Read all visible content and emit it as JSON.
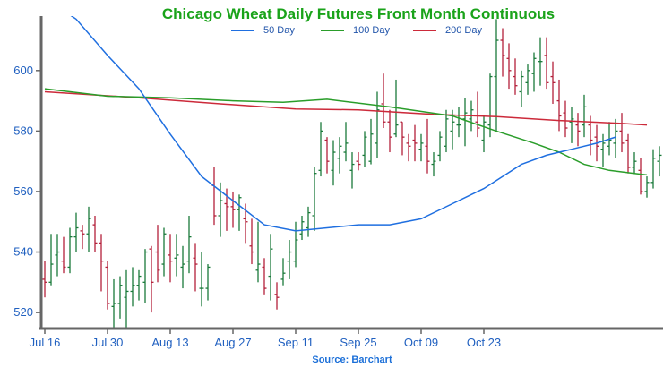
{
  "chart_data": {
    "type": "ohlc",
    "title": "Chicago Wheat Daily Futures Front Month Continuous",
    "source": "Source: Barchart",
    "x_tick_labels": [
      "Jul 16",
      "Jul 30",
      "Aug 13",
      "Aug 27",
      "Sep 11",
      "Sep 25",
      "Oct 09",
      "Oct 23"
    ],
    "x_tick_indices": [
      0,
      10,
      20,
      30,
      40,
      50,
      60,
      70
    ],
    "y_ticks": [
      520,
      540,
      560,
      580,
      600
    ],
    "ylim": [
      515,
      618
    ],
    "grid": false,
    "legend": [
      "50 Day",
      "100 Day",
      "200 Day"
    ],
    "legend_position": "top-center",
    "colors": {
      "up": "#1a7a3a",
      "down": "#b3203a",
      "ma50": "#1f6fe0",
      "ma100": "#2a9d2a",
      "ma200": "#cc2a3a",
      "axis": "#2060c0",
      "title": "#1aa31a"
    },
    "bars": [
      {
        "date": "Jul 16",
        "o": 531,
        "h": 537,
        "l": 525,
        "c": 530
      },
      {
        "date": "Jul 17",
        "o": 530,
        "h": 546,
        "l": 529,
        "c": 536
      },
      {
        "date": "Jul 18",
        "o": 539,
        "h": 546,
        "l": 532,
        "c": 540
      },
      {
        "date": "Jul 19",
        "o": 537,
        "h": 545,
        "l": 533,
        "c": 535
      },
      {
        "date": "Jul 20",
        "o": 535,
        "h": 548,
        "l": 533,
        "c": 545
      },
      {
        "date": "Jul 23",
        "o": 545,
        "h": 553,
        "l": 540,
        "c": 548
      },
      {
        "date": "Jul 24",
        "o": 547,
        "h": 549,
        "l": 541,
        "c": 546
      },
      {
        "date": "Jul 25",
        "o": 546,
        "h": 555,
        "l": 540,
        "c": 551
      },
      {
        "date": "Jul 26",
        "o": 549,
        "h": 552,
        "l": 540,
        "c": 543
      },
      {
        "date": "Jul 27",
        "o": 543,
        "h": 546,
        "l": 527,
        "c": 537
      },
      {
        "date": "Jul 30",
        "o": 535,
        "h": 537,
        "l": 521,
        "c": 523
      },
      {
        "date": "Jul 31",
        "o": 522,
        "h": 531,
        "l": 514,
        "c": 523
      },
      {
        "date": "Aug 01",
        "o": 523,
        "h": 532,
        "l": 518,
        "c": 529
      },
      {
        "date": "Aug 02",
        "o": 525,
        "h": 534,
        "l": 515,
        "c": 527
      },
      {
        "date": "Aug 03",
        "o": 527,
        "h": 535,
        "l": 522,
        "c": 529
      },
      {
        "date": "Aug 06",
        "o": 529,
        "h": 534,
        "l": 524,
        "c": 532
      },
      {
        "date": "Aug 07",
        "o": 530,
        "h": 541,
        "l": 523,
        "c": 540
      },
      {
        "date": "Aug 08",
        "o": 541,
        "h": 542,
        "l": 520,
        "c": 530
      },
      {
        "date": "Aug 09",
        "o": 540,
        "h": 549,
        "l": 530,
        "c": 534
      },
      {
        "date": "Aug 10",
        "o": 536,
        "h": 548,
        "l": 532,
        "c": 546
      },
      {
        "date": "Aug 13",
        "o": 539,
        "h": 546,
        "l": 530,
        "c": 537
      },
      {
        "date": "Aug 14",
        "o": 538,
        "h": 546,
        "l": 532,
        "c": 539
      },
      {
        "date": "Aug 15",
        "o": 535,
        "h": 542,
        "l": 528,
        "c": 536
      },
      {
        "date": "Aug 16",
        "o": 537,
        "h": 552,
        "l": 533,
        "c": 545
      },
      {
        "date": "Aug 17",
        "o": 538,
        "h": 543,
        "l": 527,
        "c": 536
      },
      {
        "date": "Aug 20",
        "o": 528,
        "h": 540,
        "l": 522,
        "c": 528
      },
      {
        "date": "Aug 21",
        "o": 528,
        "h": 536,
        "l": 524,
        "c": 535
      },
      {
        "date": "Aug 22",
        "o": 562,
        "h": 568,
        "l": 549,
        "c": 552
      },
      {
        "date": "Aug 23",
        "o": 552,
        "h": 563,
        "l": 545,
        "c": 557
      },
      {
        "date": "Aug 24",
        "o": 556,
        "h": 561,
        "l": 547,
        "c": 555
      },
      {
        "date": "Aug 27",
        "o": 555,
        "h": 560,
        "l": 548,
        "c": 554
      },
      {
        "date": "Aug 28",
        "o": 554,
        "h": 559,
        "l": 547,
        "c": 558
      },
      {
        "date": "Aug 29",
        "o": 551,
        "h": 556,
        "l": 543,
        "c": 550
      },
      {
        "date": "Aug 30",
        "o": 542,
        "h": 551,
        "l": 536,
        "c": 540
      },
      {
        "date": "Aug 31",
        "o": 534,
        "h": 550,
        "l": 530,
        "c": 536
      },
      {
        "date": "Sep 04",
        "o": 535,
        "h": 538,
        "l": 526,
        "c": 528
      },
      {
        "date": "Sep 05",
        "o": 532,
        "h": 546,
        "l": 524,
        "c": 541
      },
      {
        "date": "Sep 06",
        "o": 526,
        "h": 530,
        "l": 521,
        "c": 525
      },
      {
        "date": "Sep 07",
        "o": 531,
        "h": 538,
        "l": 529,
        "c": 533
      },
      {
        "date": "Sep 10",
        "o": 537,
        "h": 544,
        "l": 531,
        "c": 540
      },
      {
        "date": "Sep 11",
        "o": 537,
        "h": 550,
        "l": 535,
        "c": 544
      },
      {
        "date": "Sep 12",
        "o": 546,
        "h": 552,
        "l": 544,
        "c": 550
      },
      {
        "date": "Sep 13",
        "o": 548,
        "h": 555,
        "l": 545,
        "c": 553
      },
      {
        "date": "Sep 14",
        "o": 552,
        "h": 568,
        "l": 547,
        "c": 566
      },
      {
        "date": "Sep 17",
        "o": 567,
        "h": 583,
        "l": 565,
        "c": 580
      },
      {
        "date": "Sep 18",
        "o": 577,
        "h": 578,
        "l": 566,
        "c": 570
      },
      {
        "date": "Sep 19",
        "o": 567,
        "h": 577,
        "l": 562,
        "c": 573
      },
      {
        "date": "Sep 20",
        "o": 571,
        "h": 578,
        "l": 566,
        "c": 575
      },
      {
        "date": "Sep 21",
        "o": 573,
        "h": 583,
        "l": 570,
        "c": 576
      },
      {
        "date": "Sep 24",
        "o": 567,
        "h": 573,
        "l": 561,
        "c": 569
      },
      {
        "date": "Sep 25",
        "o": 570,
        "h": 573,
        "l": 567,
        "c": 569
      },
      {
        "date": "Sep 26",
        "o": 572,
        "h": 580,
        "l": 568,
        "c": 578
      },
      {
        "date": "Sep 27",
        "o": 570,
        "h": 584,
        "l": 569,
        "c": 579
      },
      {
        "date": "Sep 28",
        "o": 576,
        "h": 593,
        "l": 571,
        "c": 587
      },
      {
        "date": "Sep 29",
        "o": 589,
        "h": 599,
        "l": 581,
        "c": 583
      },
      {
        "date": "Oct 01",
        "o": 583,
        "h": 587,
        "l": 573,
        "c": 578
      },
      {
        "date": "Oct 02",
        "o": 579,
        "h": 597,
        "l": 578,
        "c": 582
      },
      {
        "date": "Oct 03",
        "o": 583,
        "h": 583,
        "l": 572,
        "c": 578
      },
      {
        "date": "Oct 04",
        "o": 576,
        "h": 579,
        "l": 570,
        "c": 575
      },
      {
        "date": "Oct 05",
        "o": 577,
        "h": 582,
        "l": 570,
        "c": 576
      },
      {
        "date": "Oct 08",
        "o": 574,
        "h": 579,
        "l": 570,
        "c": 576
      },
      {
        "date": "Oct 09",
        "o": 575,
        "h": 584,
        "l": 566,
        "c": 570
      },
      {
        "date": "Oct 10",
        "o": 569,
        "h": 573,
        "l": 565,
        "c": 570
      },
      {
        "date": "Oct 11",
        "o": 572,
        "h": 580,
        "l": 570,
        "c": 578
      },
      {
        "date": "Oct 12",
        "o": 575,
        "h": 587,
        "l": 573,
        "c": 584
      },
      {
        "date": "Oct 15",
        "o": 580,
        "h": 587,
        "l": 574,
        "c": 583
      },
      {
        "date": "Oct 16",
        "o": 582,
        "h": 588,
        "l": 578,
        "c": 582
      },
      {
        "date": "Oct 17",
        "o": 584,
        "h": 591,
        "l": 575,
        "c": 586
      },
      {
        "date": "Oct 18",
        "o": 584,
        "h": 590,
        "l": 580,
        "c": 587
      },
      {
        "date": "Oct 19",
        "o": 583,
        "h": 593,
        "l": 578,
        "c": 581
      },
      {
        "date": "Oct 22",
        "o": 577,
        "h": 585,
        "l": 573,
        "c": 583
      },
      {
        "date": "Oct 23",
        "o": 582,
        "h": 599,
        "l": 578,
        "c": 598
      },
      {
        "date": "Oct 24",
        "o": 598,
        "h": 617,
        "l": 580,
        "c": 610
      },
      {
        "date": "Oct 25",
        "o": 610,
        "h": 614,
        "l": 598,
        "c": 605
      },
      {
        "date": "Oct 26",
        "o": 604,
        "h": 609,
        "l": 594,
        "c": 600
      },
      {
        "date": "Oct 29",
        "o": 598,
        "h": 604,
        "l": 592,
        "c": 595
      },
      {
        "date": "Oct 30",
        "o": 593,
        "h": 600,
        "l": 588,
        "c": 598
      },
      {
        "date": "Oct 31",
        "o": 596,
        "h": 602,
        "l": 592,
        "c": 600
      },
      {
        "date": "Nov 01",
        "o": 599,
        "h": 606,
        "l": 593,
        "c": 604
      },
      {
        "date": "Nov 02",
        "o": 603,
        "h": 611,
        "l": 595,
        "c": 603
      },
      {
        "date": "Nov 05",
        "o": 605,
        "h": 611,
        "l": 594,
        "c": 596
      },
      {
        "date": "Nov 06",
        "o": 598,
        "h": 603,
        "l": 589,
        "c": 596
      },
      {
        "date": "Nov 07",
        "o": 590,
        "h": 597,
        "l": 580,
        "c": 585
      },
      {
        "date": "Nov 08",
        "o": 586,
        "h": 590,
        "l": 578,
        "c": 581
      },
      {
        "date": "Nov 09",
        "o": 583,
        "h": 588,
        "l": 576,
        "c": 584
      },
      {
        "date": "Nov 12",
        "o": 582,
        "h": 586,
        "l": 575,
        "c": 580
      },
      {
        "date": "Nov 13",
        "o": 582,
        "h": 592,
        "l": 578,
        "c": 588
      },
      {
        "date": "Nov 14",
        "o": 582,
        "h": 585,
        "l": 572,
        "c": 577
      },
      {
        "date": "Nov 15",
        "o": 578,
        "h": 582,
        "l": 570,
        "c": 575
      },
      {
        "date": "Nov 16",
        "o": 574,
        "h": 579,
        "l": 568,
        "c": 576
      },
      {
        "date": "Nov 19",
        "o": 575,
        "h": 583,
        "l": 572,
        "c": 577
      },
      {
        "date": "Nov 20",
        "o": 576,
        "h": 584,
        "l": 571,
        "c": 580
      },
      {
        "date": "Nov 21",
        "o": 580,
        "h": 586,
        "l": 573,
        "c": 576
      },
      {
        "date": "Nov 26",
        "o": 577,
        "h": 579,
        "l": 566,
        "c": 568
      },
      {
        "date": "Nov 27",
        "o": 568,
        "h": 573,
        "l": 566,
        "c": 570
      },
      {
        "date": "Nov 28",
        "o": 567,
        "h": 571,
        "l": 559,
        "c": 560
      },
      {
        "date": "Nov 29",
        "o": 560,
        "h": 565,
        "l": 558,
        "c": 563
      },
      {
        "date": "Nov 30",
        "o": 563,
        "h": 574,
        "l": 561,
        "c": 571
      },
      {
        "date": "Dec 03",
        "o": 570,
        "h": 575,
        "l": 565,
        "c": 572
      },
      {
        "date": "Dec 04",
        "o": 571,
        "h": 577,
        "l": 564,
        "c": 567
      },
      {
        "date": "Dec 05",
        "o": 567,
        "h": 573,
        "l": 564,
        "c": 569
      },
      {
        "date": "Dec 06",
        "o": 569,
        "h": 576,
        "l": 566,
        "c": 573
      },
      {
        "date": "Dec 07",
        "o": 571,
        "h": 575,
        "l": 565,
        "c": 571
      },
      {
        "date": "Dec 10",
        "o": 569,
        "h": 575,
        "l": 565,
        "c": 573
      }
    ],
    "ma50": [
      [
        0,
        624
      ],
      [
        5,
        617
      ],
      [
        10,
        605
      ],
      [
        15,
        594
      ],
      [
        20,
        579
      ],
      [
        25,
        565
      ],
      [
        30,
        557
      ],
      [
        35,
        549
      ],
      [
        40,
        547
      ],
      [
        45,
        548
      ],
      [
        50,
        549
      ],
      [
        55,
        549
      ],
      [
        60,
        551
      ],
      [
        65,
        556
      ],
      [
        70,
        561
      ],
      [
        73,
        565
      ],
      [
        76,
        569
      ],
      [
        80,
        572
      ],
      [
        84,
        574
      ],
      [
        88,
        576
      ],
      [
        91,
        578
      ]
    ],
    "ma100": [
      [
        0,
        594
      ],
      [
        10,
        591.5
      ],
      [
        20,
        591
      ],
      [
        30,
        590
      ],
      [
        38,
        589.5
      ],
      [
        45,
        590.5
      ],
      [
        55,
        588
      ],
      [
        65,
        585
      ],
      [
        72,
        580
      ],
      [
        78,
        576
      ],
      [
        82,
        573
      ],
      [
        86,
        569
      ],
      [
        90,
        567
      ],
      [
        94,
        566
      ],
      [
        96,
        565.5
      ]
    ],
    "ma200": [
      [
        0,
        593
      ],
      [
        15,
        591
      ],
      [
        28,
        589
      ],
      [
        40,
        587.3
      ],
      [
        50,
        587
      ],
      [
        62,
        585.5
      ],
      [
        72,
        584.8
      ],
      [
        82,
        583.5
      ],
      [
        92,
        582.5
      ],
      [
        96,
        582
      ]
    ]
  }
}
